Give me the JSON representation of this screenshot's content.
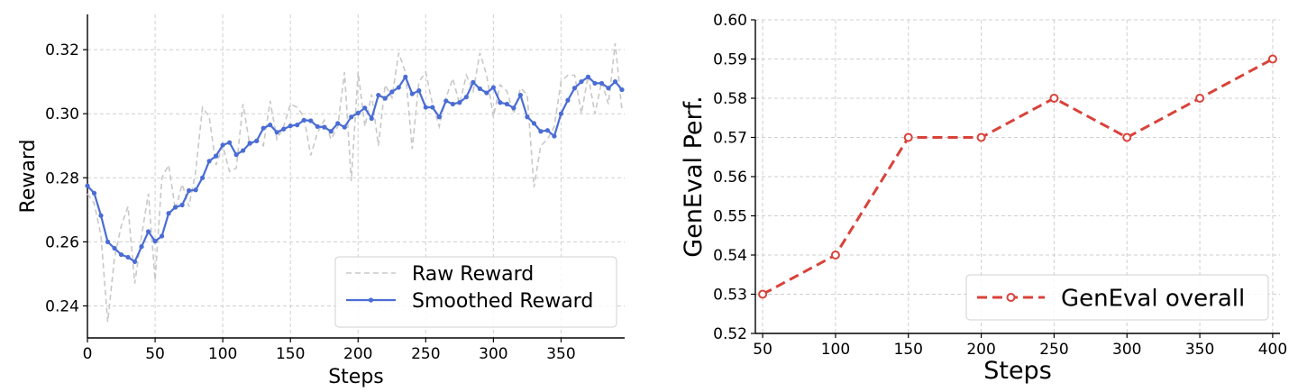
{
  "chart_data": [
    {
      "type": "line",
      "title": "",
      "xlabel": "Steps",
      "ylabel": "Reward",
      "xlim": [
        0,
        397
      ],
      "ylim": [
        0.23,
        0.331
      ],
      "xticks": [
        0,
        50,
        100,
        150,
        200,
        250,
        300,
        350
      ],
      "yticks": [
        0.24,
        0.26,
        0.28,
        0.3,
        0.32
      ],
      "ytick_decimals": 2,
      "grid": true,
      "legend": "bottom-right",
      "series": [
        {
          "name": "Raw Reward",
          "color": "#c8c8c8",
          "style": "dashed",
          "x": [
            0,
            5,
            10,
            15,
            20,
            25,
            30,
            35,
            40,
            45,
            50,
            55,
            60,
            65,
            70,
            75,
            80,
            85,
            90,
            95,
            100,
            105,
            110,
            115,
            120,
            125,
            130,
            135,
            140,
            145,
            150,
            155,
            160,
            165,
            170,
            175,
            180,
            185,
            190,
            195,
            200,
            205,
            210,
            215,
            220,
            225,
            230,
            235,
            240,
            245,
            250,
            255,
            260,
            265,
            270,
            275,
            280,
            285,
            290,
            295,
            300,
            305,
            310,
            315,
            320,
            325,
            330,
            335,
            340,
            345,
            350,
            355,
            360,
            365,
            370,
            375,
            380,
            385,
            390,
            395
          ],
          "y": [
            0.275,
            0.272,
            0.262,
            0.235,
            0.255,
            0.265,
            0.271,
            0.247,
            0.262,
            0.275,
            0.248,
            0.28,
            0.284,
            0.27,
            0.278,
            0.271,
            0.282,
            0.302,
            0.299,
            0.284,
            0.29,
            0.282,
            0.283,
            0.303,
            0.29,
            0.292,
            0.29,
            0.304,
            0.292,
            0.296,
            0.303,
            0.302,
            0.299,
            0.287,
            0.294,
            0.298,
            0.292,
            0.296,
            0.313,
            0.279,
            0.313,
            0.296,
            0.306,
            0.29,
            0.309,
            0.305,
            0.319,
            0.313,
            0.289,
            0.31,
            0.313,
            0.303,
            0.296,
            0.305,
            0.311,
            0.303,
            0.312,
            0.307,
            0.319,
            0.312,
            0.299,
            0.309,
            0.307,
            0.3,
            0.308,
            0.306,
            0.277,
            0.29,
            0.292,
            0.296,
            0.31,
            0.312,
            0.312,
            0.3,
            0.312,
            0.3,
            0.31,
            0.303,
            0.322,
            0.301
          ]
        },
        {
          "name": "Smoothed Reward",
          "color": "#4a6cd4",
          "style": "solid-dots",
          "x": [
            0,
            5,
            10,
            15,
            20,
            25,
            30,
            35,
            40,
            45,
            50,
            55,
            60,
            65,
            70,
            75,
            80,
            85,
            90,
            95,
            100,
            105,
            110,
            115,
            120,
            125,
            130,
            135,
            140,
            145,
            150,
            155,
            160,
            165,
            170,
            175,
            180,
            185,
            190,
            195,
            200,
            205,
            210,
            215,
            220,
            225,
            230,
            235,
            240,
            245,
            250,
            255,
            260,
            265,
            270,
            275,
            280,
            285,
            290,
            295,
            300,
            305,
            310,
            315,
            320,
            325,
            330,
            335,
            340,
            345,
            350,
            355,
            360,
            365,
            370,
            375,
            380,
            385,
            390,
            395
          ],
          "y": [
            0.2775,
            0.2752,
            0.2682,
            0.26,
            0.258,
            0.256,
            0.2552,
            0.2538,
            0.2585,
            0.2632,
            0.2602,
            0.2618,
            0.2689,
            0.2708,
            0.2715,
            0.276,
            0.2762,
            0.28,
            0.2852,
            0.2868,
            0.2902,
            0.291,
            0.2872,
            0.2885,
            0.2908,
            0.2915,
            0.2955,
            0.2965,
            0.2942,
            0.2952,
            0.2962,
            0.2965,
            0.298,
            0.2978,
            0.296,
            0.2958,
            0.2945,
            0.297,
            0.2958,
            0.299,
            0.3002,
            0.3018,
            0.2985,
            0.3058,
            0.3048,
            0.3068,
            0.3082,
            0.3115,
            0.3062,
            0.3072,
            0.302,
            0.302,
            0.299,
            0.304,
            0.303,
            0.3035,
            0.3052,
            0.3098,
            0.3078,
            0.3065,
            0.3082,
            0.3035,
            0.303,
            0.3018,
            0.3058,
            0.299,
            0.297,
            0.2945,
            0.2948,
            0.293,
            0.3,
            0.3042,
            0.308,
            0.31,
            0.3115,
            0.3095,
            0.3095,
            0.308,
            0.31,
            0.3075
          ]
        }
      ]
    },
    {
      "type": "line",
      "title": "",
      "xlabel": "Steps",
      "ylabel": "GenEval Perf.",
      "xlim": [
        45,
        405
      ],
      "ylim": [
        0.52,
        0.6
      ],
      "xticks": [
        50,
        100,
        150,
        200,
        250,
        300,
        350,
        400
      ],
      "yticks": [
        0.52,
        0.53,
        0.54,
        0.55,
        0.56,
        0.57,
        0.58,
        0.59,
        0.6
      ],
      "ytick_decimals": 2,
      "grid": true,
      "legend": "bottom-right",
      "series": [
        {
          "name": "GenEval overall",
          "color": "#d9423a",
          "style": "dashed-open-circles",
          "x": [
            50,
            100,
            150,
            200,
            250,
            300,
            350,
            400
          ],
          "y": [
            0.53,
            0.54,
            0.57,
            0.57,
            0.58,
            0.57,
            0.58,
            0.59
          ]
        }
      ]
    }
  ]
}
